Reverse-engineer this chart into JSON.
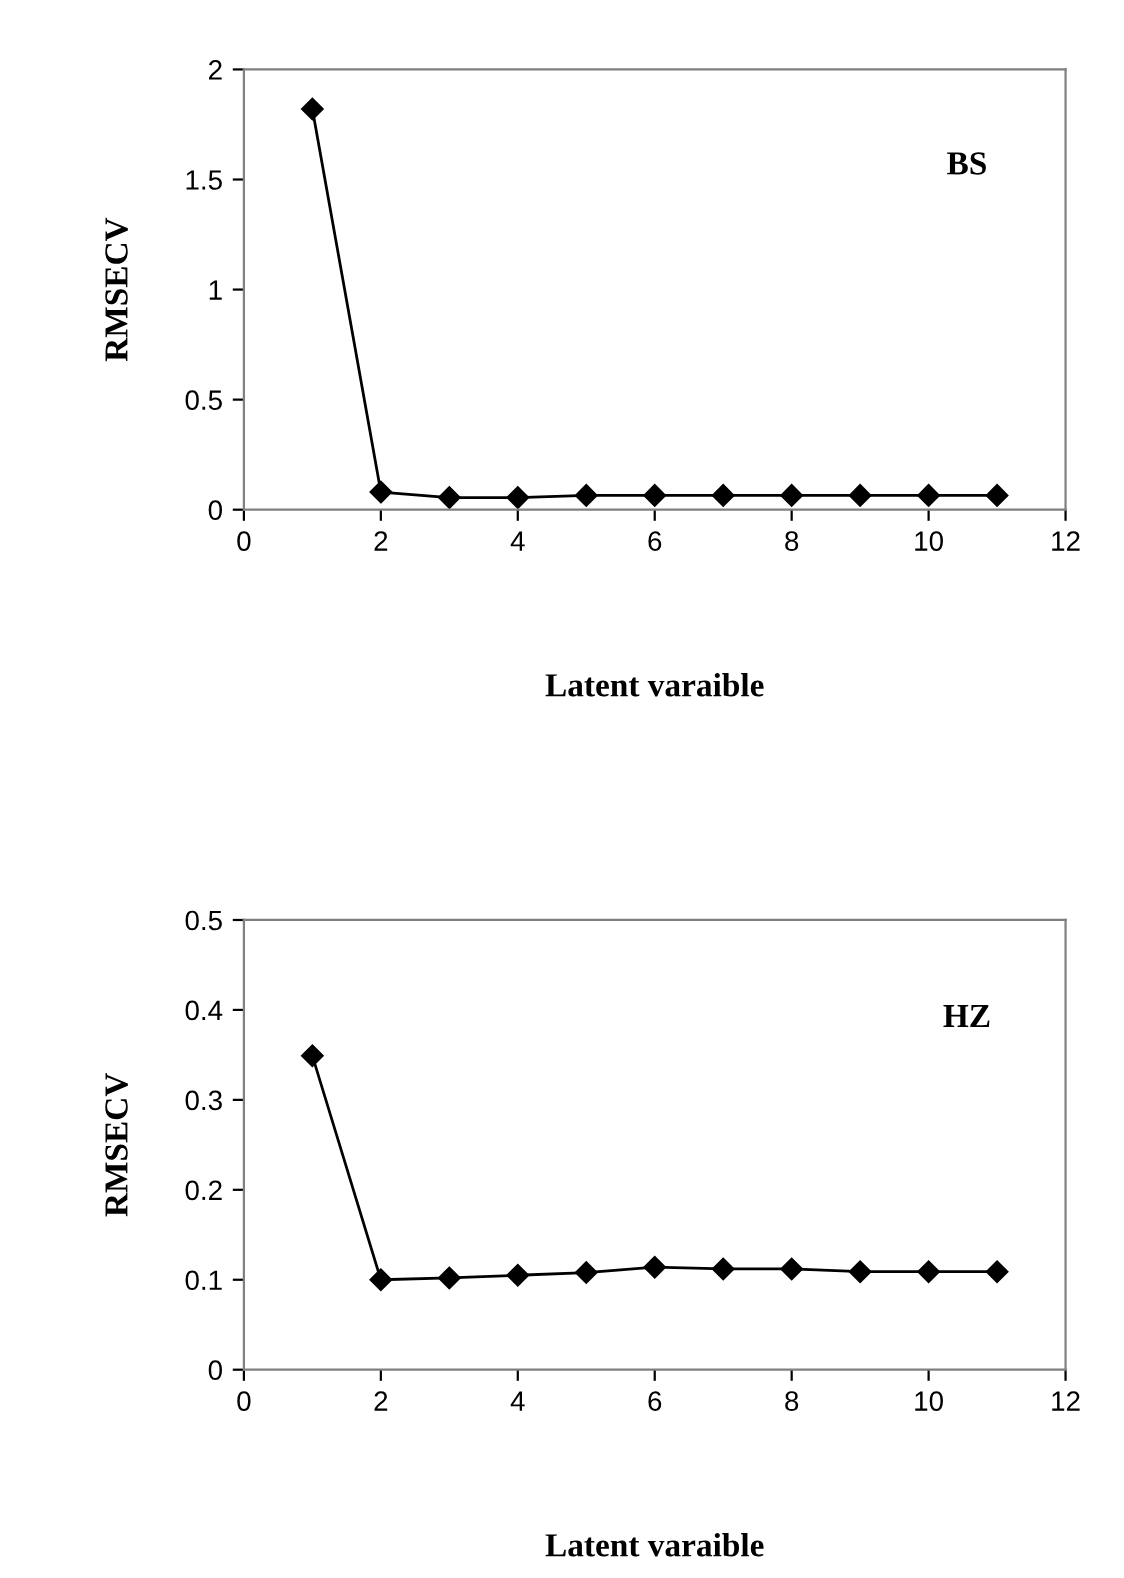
{
  "chart_data": [
    {
      "type": "line",
      "xlabel": "Latent varaible",
      "ylabel": "RMSECV",
      "annotations": [
        "BS"
      ],
      "x": [
        1,
        2,
        3,
        4,
        5,
        6,
        7,
        8,
        9,
        10,
        11
      ],
      "series": [
        {
          "color": "#000000",
          "values": [
            1.82,
            0.08,
            0.055,
            0.055,
            0.065,
            0.065,
            0.065,
            0.065,
            0.065,
            0.065,
            0.065
          ]
        }
      ],
      "xlim": [
        0,
        12
      ],
      "xticks": [
        0,
        2,
        4,
        6,
        8,
        10,
        12
      ],
      "ylim": [
        0,
        2
      ],
      "yticks": [
        0,
        0.5,
        1,
        1.5,
        2
      ],
      "grid": false,
      "legend": false,
      "marker": "diamond",
      "line_style": "solid"
    },
    {
      "type": "line",
      "xlabel": "Latent varaible",
      "ylabel": "RMSECV",
      "annotations": [
        "HZ"
      ],
      "x": [
        1,
        2,
        3,
        4,
        5,
        6,
        7,
        8,
        9,
        10,
        11
      ],
      "series": [
        {
          "color": "#000000",
          "values": [
            0.349,
            0.1,
            0.102,
            0.105,
            0.108,
            0.114,
            0.112,
            0.112,
            0.109,
            0.109,
            0.109
          ]
        }
      ],
      "xlim": [
        0,
        12
      ],
      "xticks": [
        0,
        2,
        4,
        6,
        8,
        10,
        12
      ],
      "ylim": [
        0,
        0.5
      ],
      "yticks": [
        0,
        0.1,
        0.2,
        0.3,
        0.4,
        0.5
      ],
      "grid": false,
      "legend": false,
      "marker": "diamond",
      "line_style": "solid"
    }
  ]
}
